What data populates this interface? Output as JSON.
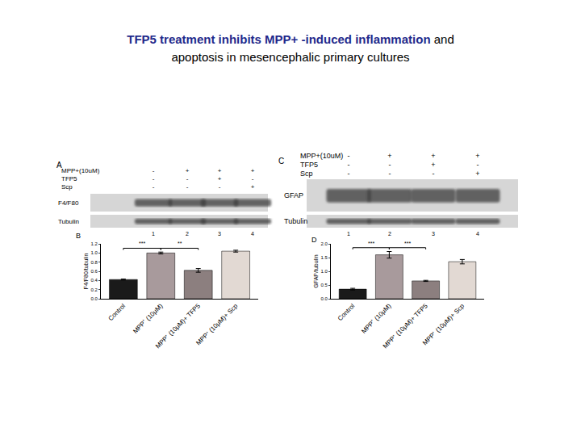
{
  "header": {
    "title_bold": "TFP5 treatment inhibits MPP+ -induced inflammation",
    "title_rest": "and",
    "subtitle": "apoptosis in mesencephalic primary cultures"
  },
  "blots": [
    {
      "panel": "A",
      "conditions": [
        {
          "name": "MPP+(10uM)",
          "signs": [
            "-",
            "+",
            "+",
            "+"
          ]
        },
        {
          "name": "TFP5",
          "signs": [
            "-",
            "-",
            "+",
            "-"
          ]
        },
        {
          "name": "Scp",
          "signs": [
            "-",
            "-",
            "-",
            "+"
          ]
        }
      ],
      "rows": [
        "F4/F80",
        "Tubulin"
      ],
      "lanes": [
        "1",
        "2",
        "3",
        "4"
      ]
    },
    {
      "panel": "C",
      "conditions": [
        {
          "name": "MPP+(10uM)",
          "signs": [
            "-",
            "+",
            "+",
            "+"
          ]
        },
        {
          "name": "TFP5",
          "signs": [
            "-",
            "-",
            "+",
            "-"
          ]
        },
        {
          "name": "Scp",
          "signs": [
            "-",
            "-",
            "-",
            "+"
          ]
        }
      ],
      "rows": [
        "GFAP",
        "Tubulin"
      ],
      "lanes": [
        "1",
        "2",
        "3",
        "4"
      ]
    }
  ],
  "chart_data": [
    {
      "panel": "B",
      "type": "bar",
      "y_label": "F4/F80/tubulin",
      "categories": [
        "Control",
        "MPP⁺ (10μM)",
        "MPP⁺ (10μM)+ TFP5",
        "MPP⁺ (10μM)+ Scp"
      ],
      "values": [
        0.42,
        1.0,
        0.62,
        1.04
      ],
      "errors": [
        0.01,
        0.02,
        0.04,
        0.02
      ],
      "colors": [
        "#1a1a1a",
        "#a89a9c",
        "#8c7f7f",
        "#e2d9d3"
      ],
      "ylim": [
        0,
        1.2
      ],
      "yticks": [
        {
          "value": 0,
          "label": "0.0"
        },
        0.2,
        0.4,
        0.6,
        0.8,
        {
          "value": 1,
          "label": "1.0"
        },
        1.2
      ],
      "significance": [
        {
          "between": [
            0,
            1
          ],
          "label": "***"
        },
        {
          "between": [
            1,
            2
          ],
          "label": "**"
        }
      ],
      "grid": false
    },
    {
      "panel": "D",
      "type": "bar",
      "y_label": "GFAP/tubulin",
      "categories": [
        "Control",
        "MPP⁺ (10μM)",
        "MPP⁺ (10μM)+ TFP5",
        "MPP⁺ (10μM)+ Scp"
      ],
      "values": [
        0.35,
        1.6,
        0.65,
        1.35
      ],
      "errors": [
        0.03,
        0.12,
        0.02,
        0.08
      ],
      "colors": [
        "#1a1a1a",
        "#a89a9c",
        "#8c7f7f",
        "#e2d9d3"
      ],
      "ylim": [
        0,
        2
      ],
      "yticks": [
        {
          "value": 0,
          "label": "0.0"
        },
        0.5,
        {
          "value": 1,
          "label": "1.0"
        },
        1.5,
        {
          "value": 2,
          "label": "2.0"
        }
      ],
      "significance": [
        {
          "between": [
            0,
            1
          ],
          "label": "***"
        },
        {
          "between": [
            1,
            2
          ],
          "label": "***"
        }
      ],
      "grid": false
    }
  ]
}
